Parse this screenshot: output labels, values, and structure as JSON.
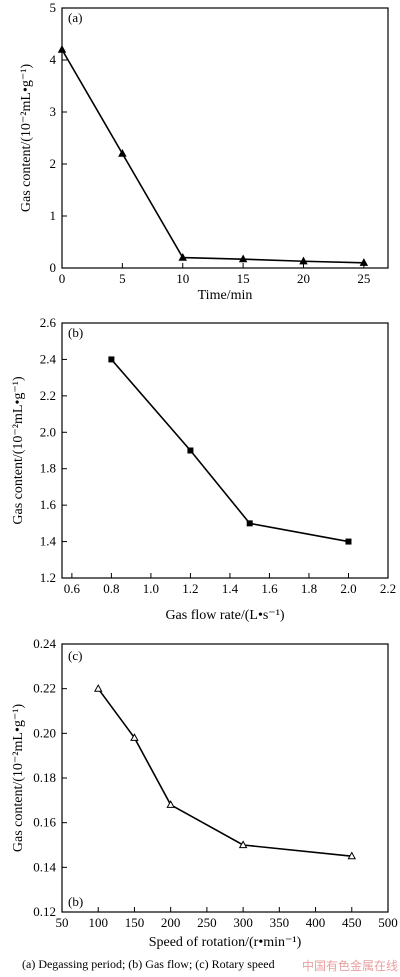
{
  "figure": {
    "caption": "(a) Degassing period; (b) Gas flow; (c) Rotary speed",
    "watermark": "中国有色金属在线"
  },
  "chart_data": [
    {
      "type": "line",
      "panel_label": "(a)",
      "xlabel": "Time/min",
      "ylabel": "Gas content/(10⁻²mL•g⁻¹)",
      "xlim": [
        0,
        27
      ],
      "ylim": [
        0,
        5
      ],
      "xticks": [
        0,
        5,
        10,
        15,
        20,
        25
      ],
      "yticks": [
        0,
        1,
        2,
        3,
        4,
        5
      ],
      "x_tick_labels": [
        "0",
        "5",
        "10",
        "15",
        "20",
        "25"
      ],
      "y_tick_labels": [
        "0",
        "1",
        "2",
        "3",
        "4",
        "5"
      ],
      "marker": "filled-triangle",
      "series": [
        {
          "x": [
            0,
            5,
            10,
            15,
            20,
            25
          ],
          "y": [
            4.2,
            2.2,
            0.2,
            0.17,
            0.13,
            0.1
          ]
        }
      ],
      "grid": false
    },
    {
      "type": "line",
      "panel_label": "(b)",
      "xlabel": "Gas flow rate/(L•s⁻¹)",
      "ylabel": "Gas content/(10⁻²mL•g⁻¹)",
      "xlim": [
        0.55,
        2.2
      ],
      "ylim": [
        1.2,
        2.6
      ],
      "xticks": [
        0.6,
        0.8,
        1.0,
        1.2,
        1.4,
        1.6,
        1.8,
        2.0,
        2.2
      ],
      "yticks": [
        1.2,
        1.4,
        1.6,
        1.8,
        2.0,
        2.2,
        2.4,
        2.6
      ],
      "x_tick_labels": [
        "0.6",
        "0.8",
        "1.0",
        "1.2",
        "1.4",
        "1.6",
        "1.8",
        "2.0",
        "2.2"
      ],
      "y_tick_labels": [
        "1.2",
        "1.4",
        "1.6",
        "1.8",
        "2.0",
        "2.2",
        "2.4",
        "2.6"
      ],
      "marker": "filled-square",
      "series": [
        {
          "x": [
            0.8,
            1.2,
            1.5,
            2.0
          ],
          "y": [
            2.4,
            1.9,
            1.5,
            1.4
          ]
        }
      ],
      "grid": false
    },
    {
      "type": "line",
      "panel_label": "(c)",
      "secondary_label": "(b)",
      "xlabel": "Speed of rotation/(r•min⁻¹)",
      "ylabel": "Gas content/(10⁻²mL•g⁻¹)",
      "xlim": [
        50,
        500
      ],
      "ylim": [
        0.12,
        0.24
      ],
      "xticks": [
        50,
        100,
        150,
        200,
        250,
        300,
        350,
        400,
        450,
        500
      ],
      "yticks": [
        0.12,
        0.14,
        0.16,
        0.18,
        0.2,
        0.22,
        0.24
      ],
      "x_tick_labels": [
        "50",
        "100",
        "150",
        "200",
        "250",
        "300",
        "350",
        "400",
        "450",
        "500"
      ],
      "y_tick_labels": [
        "0.12",
        "0.14",
        "0.16",
        "0.18",
        "0.20",
        "0.22",
        "0.24"
      ],
      "marker": "open-triangle",
      "series": [
        {
          "x": [
            100,
            150,
            200,
            300,
            450
          ],
          "y": [
            0.22,
            0.198,
            0.168,
            0.15,
            0.145
          ]
        }
      ],
      "grid": false
    }
  ]
}
